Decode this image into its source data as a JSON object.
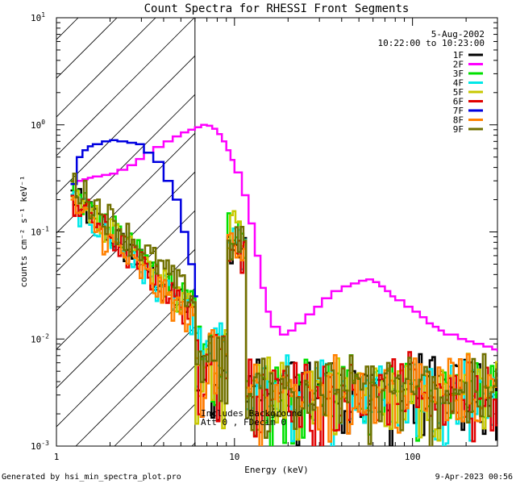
{
  "chart_data": {
    "type": "line",
    "title": "Count Spectra for RHESSI Front Segments",
    "xlabel": "Energy (keV)",
    "ylabel": "counts cm⁻² s⁻¹ keV⁻¹",
    "xscale": "log",
    "yscale": "log",
    "xlim": [
      1,
      300
    ],
    "ylim": [
      0.001,
      10
    ],
    "x_ticks": [
      {
        "value": 1,
        "label": "1"
      },
      {
        "value": 10,
        "label": "10"
      },
      {
        "value": 100,
        "label": "100"
      }
    ],
    "y_ticks": [
      {
        "value": 10,
        "base": "10",
        "exp": "1"
      },
      {
        "value": 1,
        "base": "10",
        "exp": "0"
      },
      {
        "value": 0.1,
        "base": "10",
        "exp": "-1"
      },
      {
        "value": 0.01,
        "base": "10",
        "exp": "-2"
      },
      {
        "value": 0.001,
        "base": "10",
        "exp": "-3"
      }
    ],
    "date": "5-Aug-2002",
    "time_range": "10:22:00 to 10:23:00",
    "attenuator_cutoff_kev": 6,
    "annotation_lines": [
      "Includes Background",
      "Att 0 , FDecim 0"
    ],
    "legend_position": "top-right",
    "series": [
      {
        "name": "1F",
        "color": "#000000"
      },
      {
        "name": "2F",
        "color": "#ff00ff",
        "x": [
          1.2,
          1.3,
          1.4,
          1.5,
          1.6,
          1.8,
          2.0,
          2.2,
          2.5,
          2.8,
          3.1,
          3.5,
          4.0,
          4.5,
          5.0,
          5.5,
          6.0,
          6.5,
          7.0,
          7.5,
          8.0,
          8.5,
          9.0,
          9.5,
          10,
          11,
          12,
          13,
          14,
          15,
          16,
          18,
          20,
          22,
          25,
          28,
          31,
          35,
          40,
          45,
          50,
          55,
          60,
          65,
          70,
          75,
          80,
          90,
          100,
          110,
          120,
          130,
          140,
          150,
          160,
          180,
          200,
          220,
          250,
          280,
          300
        ],
        "values": [
          0.28,
          0.3,
          0.31,
          0.32,
          0.33,
          0.34,
          0.35,
          0.38,
          0.42,
          0.48,
          0.55,
          0.62,
          0.7,
          0.78,
          0.85,
          0.9,
          0.95,
          1.0,
          0.98,
          0.92,
          0.82,
          0.7,
          0.58,
          0.47,
          0.36,
          0.22,
          0.12,
          0.06,
          0.03,
          0.018,
          0.013,
          0.011,
          0.012,
          0.014,
          0.017,
          0.02,
          0.024,
          0.028,
          0.031,
          0.033,
          0.035,
          0.036,
          0.034,
          0.031,
          0.028,
          0.025,
          0.023,
          0.02,
          0.018,
          0.016,
          0.014,
          0.013,
          0.012,
          0.011,
          0.011,
          0.01,
          0.0095,
          0.009,
          0.0085,
          0.008,
          0.0078
        ]
      },
      {
        "name": "3F",
        "color": "#00e000"
      },
      {
        "name": "4F",
        "color": "#00e8e8"
      },
      {
        "name": "5F",
        "color": "#c8c800"
      },
      {
        "name": "6F",
        "color": "#e00000"
      },
      {
        "name": "7F",
        "color": "#0000e0",
        "x": [
          1.2,
          1.3,
          1.4,
          1.5,
          1.6,
          1.8,
          2.0,
          2.2,
          2.5,
          2.8,
          3.1,
          3.5,
          4.0,
          4.5,
          5.0,
          5.5,
          6.0
        ],
        "values": [
          0.28,
          0.5,
          0.58,
          0.63,
          0.66,
          0.7,
          0.72,
          0.7,
          0.68,
          0.66,
          0.55,
          0.45,
          0.3,
          0.2,
          0.1,
          0.05,
          0.025
        ]
      },
      {
        "name": "8F",
        "color": "#ff8000"
      },
      {
        "name": "9F",
        "color": "#707000"
      }
    ]
  },
  "footer": {
    "left": "Generated by hsi_min_spectra_plot.pro",
    "right": "9-Apr-2023 00:56"
  }
}
